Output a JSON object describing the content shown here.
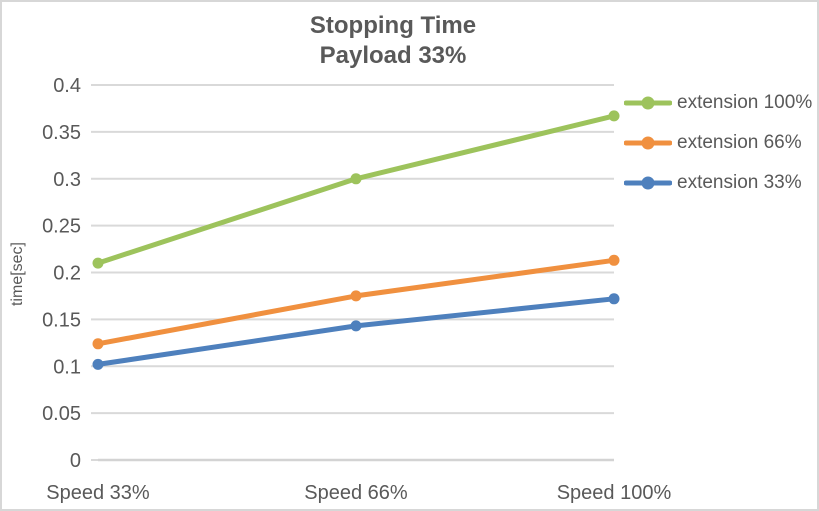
{
  "window": {
    "background": "#ffffff",
    "border_color": "#d7d7d7"
  },
  "chart_data": {
    "type": "line",
    "title": "Stopping Time",
    "subtitle": "Payload 33%",
    "categories": [
      "Speed 33%",
      "Speed 66%",
      "Speed 100%"
    ],
    "series": [
      {
        "name": "extension 100%",
        "color": "#9dc35c",
        "values": [
          0.21,
          0.3,
          0.367
        ]
      },
      {
        "name": "extension 66%",
        "color": "#f0903f",
        "values": [
          0.124,
          0.175,
          0.213
        ]
      },
      {
        "name": "extension 33%",
        "color": "#4e80bd",
        "values": [
          0.102,
          0.143,
          0.172
        ]
      }
    ],
    "xlabel": "",
    "ylabel": "time[sec]",
    "ylim": [
      0,
      0.4
    ],
    "ytick_step": 0.05,
    "ytick_labels": [
      "0",
      "0.05",
      "0.1",
      "0.15",
      "0.2",
      "0.25",
      "0.3",
      "0.35",
      "0.4"
    ],
    "grid": "horizontal",
    "legend_position": "right",
    "marker": "circle",
    "colors": {
      "gridline": "#d9d9d9",
      "axis_line": "#d3d3d3",
      "text": "#595959"
    }
  }
}
